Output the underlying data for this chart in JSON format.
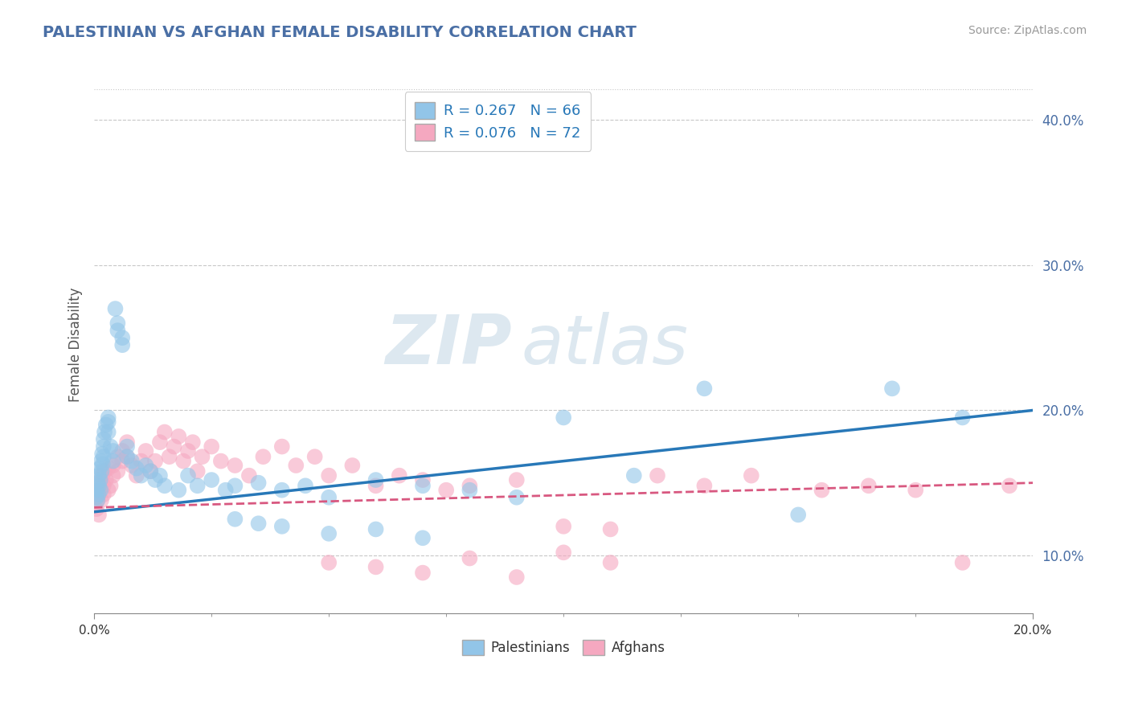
{
  "title": "PALESTINIAN VS AFGHAN FEMALE DISABILITY CORRELATION CHART",
  "source": "Source: ZipAtlas.com",
  "ylabel": "Female Disability",
  "xlim": [
    0.0,
    0.2
  ],
  "ylim": [
    0.06,
    0.43
  ],
  "xtick_positions": [
    0.0,
    0.2
  ],
  "xtick_labels": [
    "0.0%",
    "20.0%"
  ],
  "ytick_positions": [
    0.1,
    0.2,
    0.3,
    0.4
  ],
  "ytick_labels": [
    "10.0%",
    "20.0%",
    "30.0%",
    "40.0%"
  ],
  "grid_color": "#c8c8c8",
  "background_color": "#ffffff",
  "watermark_zip": "ZIP",
  "watermark_atlas": "atlas",
  "legend_text1": "R = 0.267   N = 66",
  "legend_text2": "R = 0.076   N = 72",
  "legend_label1": "Palestinians",
  "legend_label2": "Afghans",
  "blue_scatter_color": "#92c5e8",
  "pink_scatter_color": "#f5a8c0",
  "blue_line_color": "#2878b8",
  "pink_line_color": "#d85880",
  "title_color": "#4a6fa5",
  "source_color": "#999999",
  "tick_color": "#4a6fa5",
  "palestinian_x": [
    0.0005,
    0.0006,
    0.0007,
    0.0008,
    0.0009,
    0.001,
    0.001,
    0.0012,
    0.0013,
    0.0014,
    0.0015,
    0.0016,
    0.0017,
    0.0018,
    0.002,
    0.002,
    0.002,
    0.0022,
    0.0025,
    0.003,
    0.003,
    0.003,
    0.0035,
    0.004,
    0.004,
    0.0045,
    0.005,
    0.005,
    0.006,
    0.006,
    0.007,
    0.007,
    0.008,
    0.009,
    0.01,
    0.011,
    0.012,
    0.013,
    0.014,
    0.015,
    0.018,
    0.02,
    0.022,
    0.025,
    0.028,
    0.03,
    0.035,
    0.04,
    0.045,
    0.05,
    0.06,
    0.07,
    0.08,
    0.09,
    0.1,
    0.115,
    0.13,
    0.15,
    0.17,
    0.185,
    0.03,
    0.035,
    0.04,
    0.05,
    0.06,
    0.07
  ],
  "palestinian_y": [
    0.14,
    0.145,
    0.138,
    0.15,
    0.142,
    0.155,
    0.148,
    0.16,
    0.152,
    0.145,
    0.165,
    0.158,
    0.17,
    0.163,
    0.175,
    0.168,
    0.18,
    0.185,
    0.19,
    0.195,
    0.185,
    0.192,
    0.175,
    0.165,
    0.172,
    0.27,
    0.26,
    0.255,
    0.245,
    0.25,
    0.175,
    0.168,
    0.165,
    0.16,
    0.155,
    0.162,
    0.158,
    0.152,
    0.155,
    0.148,
    0.145,
    0.155,
    0.148,
    0.152,
    0.145,
    0.148,
    0.15,
    0.145,
    0.148,
    0.14,
    0.152,
    0.148,
    0.145,
    0.14,
    0.195,
    0.155,
    0.215,
    0.128,
    0.215,
    0.195,
    0.125,
    0.122,
    0.12,
    0.115,
    0.118,
    0.112
  ],
  "afghan_x": [
    0.0005,
    0.0007,
    0.0009,
    0.001,
    0.001,
    0.0012,
    0.0015,
    0.0017,
    0.002,
    0.002,
    0.0022,
    0.0025,
    0.003,
    0.003,
    0.0035,
    0.004,
    0.004,
    0.005,
    0.005,
    0.006,
    0.006,
    0.007,
    0.007,
    0.008,
    0.009,
    0.01,
    0.011,
    0.012,
    0.013,
    0.014,
    0.015,
    0.016,
    0.017,
    0.018,
    0.019,
    0.02,
    0.021,
    0.022,
    0.023,
    0.025,
    0.027,
    0.03,
    0.033,
    0.036,
    0.04,
    0.043,
    0.047,
    0.05,
    0.055,
    0.06,
    0.065,
    0.07,
    0.075,
    0.08,
    0.09,
    0.1,
    0.11,
    0.12,
    0.13,
    0.14,
    0.155,
    0.165,
    0.175,
    0.185,
    0.195,
    0.05,
    0.06,
    0.07,
    0.08,
    0.09,
    0.1,
    0.11
  ],
  "afghan_y": [
    0.132,
    0.138,
    0.145,
    0.128,
    0.142,
    0.15,
    0.138,
    0.155,
    0.148,
    0.142,
    0.158,
    0.152,
    0.16,
    0.145,
    0.148,
    0.162,
    0.155,
    0.168,
    0.158,
    0.172,
    0.165,
    0.178,
    0.168,
    0.162,
    0.155,
    0.165,
    0.172,
    0.158,
    0.165,
    0.178,
    0.185,
    0.168,
    0.175,
    0.182,
    0.165,
    0.172,
    0.178,
    0.158,
    0.168,
    0.175,
    0.165,
    0.162,
    0.155,
    0.168,
    0.175,
    0.162,
    0.168,
    0.155,
    0.162,
    0.148,
    0.155,
    0.152,
    0.145,
    0.148,
    0.152,
    0.12,
    0.118,
    0.155,
    0.148,
    0.155,
    0.145,
    0.148,
    0.145,
    0.095,
    0.148,
    0.095,
    0.092,
    0.088,
    0.098,
    0.085,
    0.102,
    0.095
  ],
  "blue_trend_start": 0.13,
  "blue_trend_end": 0.2,
  "pink_trend_start": 0.133,
  "pink_trend_end": 0.15
}
